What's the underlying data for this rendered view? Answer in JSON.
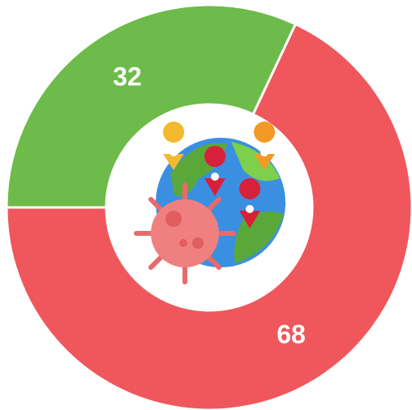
{
  "chart_data": {
    "type": "donut",
    "values": [
      32,
      68
    ],
    "colors": [
      "#6dbb4a",
      "#ef575c"
    ]
  }
}
